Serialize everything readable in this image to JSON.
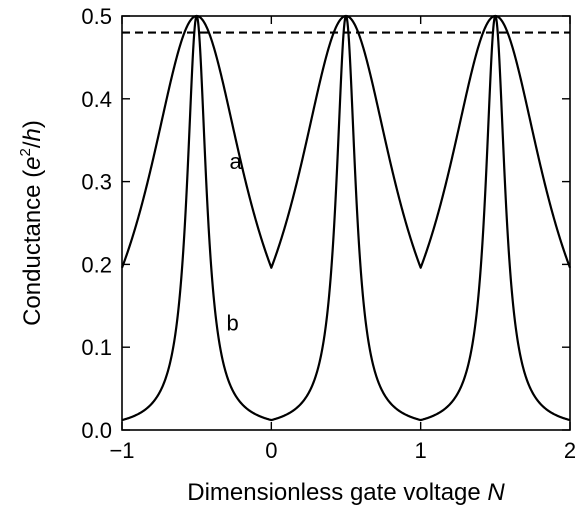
{
  "chart_data": {
    "type": "line",
    "xlabel_text": "Dimensionless gate voltage ",
    "xlabel_var": "N",
    "ylabel_text": "Conductance  (",
    "ylabel_e": "e",
    "ylabel_exp": "2",
    "ylabel_rest": "/",
    "ylabel_h": "h",
    "ylabel_close": ")",
    "xlim": [
      -1,
      2
    ],
    "ylim": [
      0,
      0.5
    ],
    "x_ticks": [
      -1,
      0,
      1,
      2
    ],
    "x_tick_labels": [
      "−1",
      "0",
      "1",
      "2"
    ],
    "y_ticks": [
      0.0,
      0.1,
      0.2,
      0.3,
      0.4,
      0.5
    ],
    "y_tick_labels": [
      "0.0",
      "0.1",
      "0.2",
      "0.3",
      "0.4",
      "0.5"
    ],
    "grid": false,
    "reference_line": {
      "style": "dashed",
      "y": 0.48
    },
    "series": [
      {
        "name": "a",
        "peak_positions": [
          -0.5,
          0.5,
          1.5
        ],
        "peak_value": 0.5,
        "valley_positions": [
          -1,
          0,
          1,
          2
        ],
        "valley_value": 0.196,
        "label_at": {
          "x": -0.28,
          "y": 0.315
        }
      },
      {
        "name": "b",
        "peak_positions": [
          -0.5,
          0.5,
          1.5
        ],
        "peak_value": 0.5,
        "valley_positions": [
          -1,
          0,
          1,
          2
        ],
        "valley_value": 0.012,
        "label_at": {
          "x": -0.3,
          "y": 0.12
        }
      }
    ]
  }
}
